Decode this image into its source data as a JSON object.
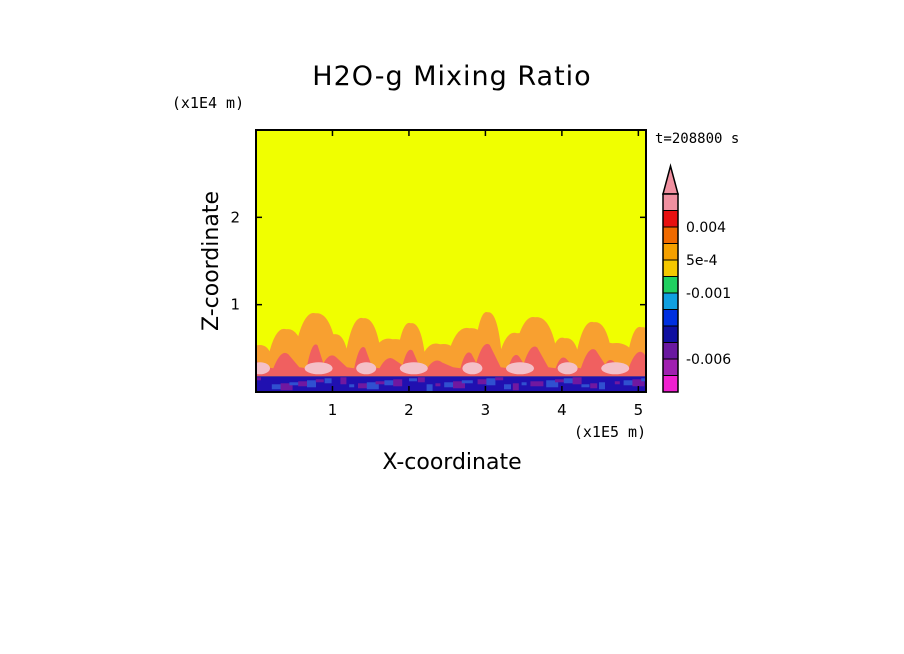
{
  "chart_data": {
    "type": "heatmap",
    "title": "H2O-g Mixing Ratio",
    "xlabel": "X-coordinate",
    "ylabel": "Z-coordinate",
    "x_scale_label": "(x1E5 m)",
    "y_scale_label": "(x1E4 m)",
    "time_label": "t=208800 s",
    "x_ticks": [
      "1",
      "2",
      "3",
      "4",
      "5"
    ],
    "y_ticks": [
      "1",
      "2"
    ],
    "xlim": [
      0,
      5.1
    ],
    "ylim": [
      0,
      3
    ],
    "colorbar": {
      "colors": [
        "#f090a0",
        "#e81010",
        "#f06a00",
        "#f5a000",
        "#f5c800",
        "#20d060",
        "#10a0e0",
        "#0030e0",
        "#1010a0",
        "#6a18a0",
        "#a020b0",
        "#f020d0"
      ],
      "tick_labels": [
        "0.004",
        "5e-4",
        "-0.001",
        "-0.006"
      ],
      "extend": "max"
    },
    "fields": {
      "background": "#f0ff00",
      "orange": "#f8a030",
      "red": "#f06060",
      "pink": "#f4c0c8",
      "surface_layer": [
        "#2010b0",
        "#7018a0",
        "#3050d0"
      ]
    }
  }
}
